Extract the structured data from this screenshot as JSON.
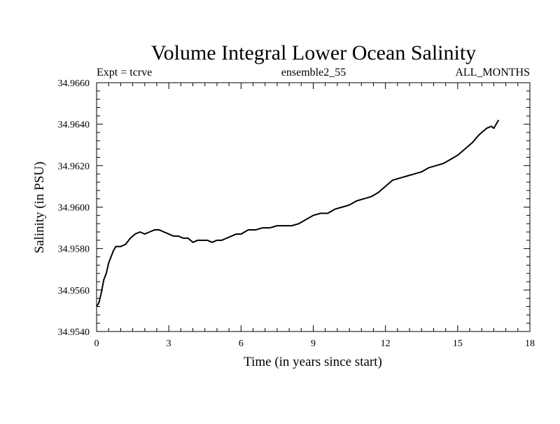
{
  "chart_data": {
    "type": "line",
    "title": "Volume Integral Lower Ocean Salinity",
    "subtitle_left": "Expt = tcrve",
    "subtitle_center": "ensemble2_55",
    "subtitle_right": "ALL_MONTHS",
    "xlabel": "Time (in years since start)",
    "ylabel": "Salinity (in PSU)",
    "xlim": [
      0,
      18
    ],
    "ylim": [
      34.954,
      34.966
    ],
    "x_ticks": [
      0,
      3,
      6,
      9,
      12,
      15,
      18
    ],
    "x_tick_labels": [
      "0",
      "3",
      "6",
      "9",
      "12",
      "15",
      "18"
    ],
    "y_ticks": [
      34.954,
      34.956,
      34.958,
      34.96,
      34.962,
      34.964,
      34.966
    ],
    "y_tick_labels": [
      "34.9540",
      "34.9560",
      "34.9580",
      "34.9600",
      "34.9620",
      "34.9640",
      "34.9660"
    ],
    "grid": false,
    "series": [
      {
        "name": "Salinity",
        "x": [
          0.0,
          0.1,
          0.2,
          0.3,
          0.4,
          0.5,
          0.6,
          0.7,
          0.8,
          0.9,
          1.0,
          1.2,
          1.4,
          1.6,
          1.8,
          2.0,
          2.2,
          2.4,
          2.6,
          2.8,
          3.0,
          3.2,
          3.4,
          3.6,
          3.8,
          4.0,
          4.2,
          4.4,
          4.6,
          4.8,
          5.0,
          5.2,
          5.4,
          5.6,
          5.8,
          6.0,
          6.3,
          6.6,
          6.9,
          7.2,
          7.5,
          7.8,
          8.1,
          8.4,
          8.7,
          9.0,
          9.3,
          9.6,
          9.9,
          10.2,
          10.5,
          10.8,
          11.1,
          11.4,
          11.7,
          12.0,
          12.3,
          12.6,
          12.9,
          13.2,
          13.5,
          13.8,
          14.1,
          14.4,
          14.7,
          15.0,
          15.3,
          15.6,
          15.9,
          16.2,
          16.4,
          16.5,
          16.6,
          16.7
        ],
        "y": [
          34.9552,
          34.9554,
          34.9559,
          34.9565,
          34.9568,
          34.9573,
          34.9576,
          34.9579,
          34.9581,
          34.9581,
          34.9581,
          34.9582,
          34.9585,
          34.9587,
          34.9588,
          34.9587,
          34.9588,
          34.9589,
          34.9589,
          34.9588,
          34.9587,
          34.9586,
          34.9586,
          34.9585,
          34.9585,
          34.9583,
          34.9584,
          34.9584,
          34.9584,
          34.9583,
          34.9584,
          34.9584,
          34.9585,
          34.9586,
          34.9587,
          34.9587,
          34.9589,
          34.9589,
          34.959,
          34.959,
          34.9591,
          34.9591,
          34.9591,
          34.9592,
          34.9594,
          34.9596,
          34.9597,
          34.9597,
          34.9599,
          34.96,
          34.9601,
          34.9603,
          34.9604,
          34.9605,
          34.9607,
          34.961,
          34.9613,
          34.9614,
          34.9615,
          34.9616,
          34.9617,
          34.9619,
          34.962,
          34.9621,
          34.9623,
          34.9625,
          34.9628,
          34.9631,
          34.9635,
          34.9638,
          34.9639,
          34.9638,
          34.964,
          34.9642
        ]
      }
    ]
  }
}
